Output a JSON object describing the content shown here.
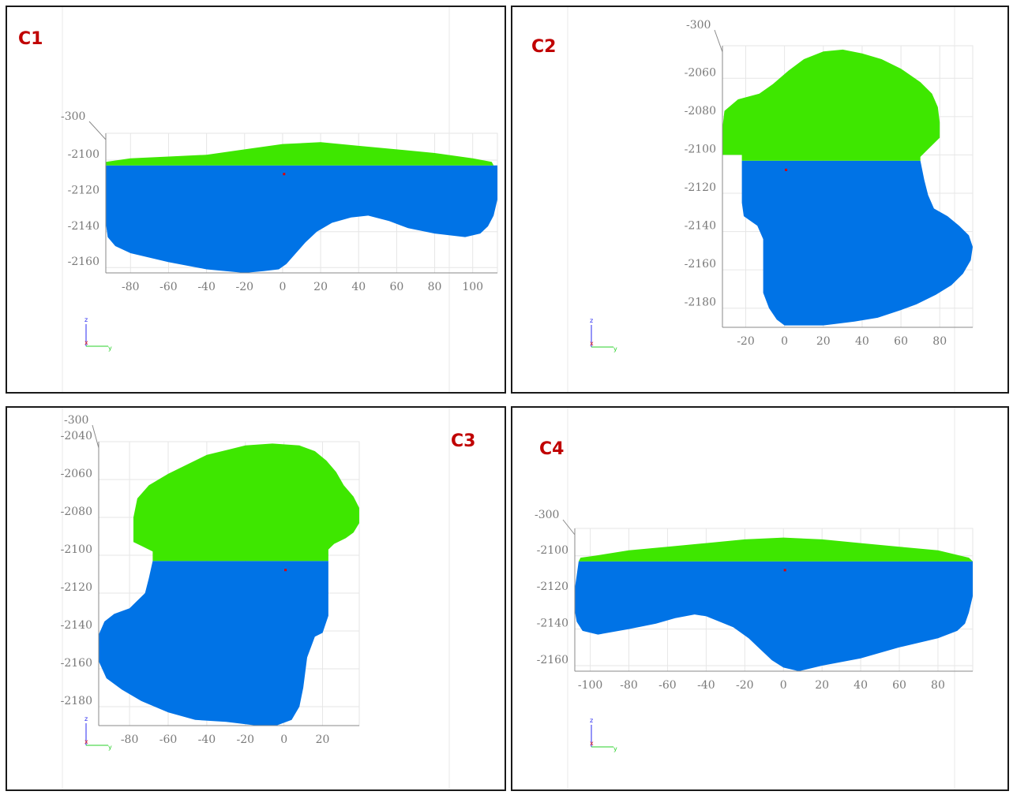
{
  "chart_data": [
    {
      "id": "C1",
      "type": "area",
      "label": "C1",
      "corner_label": "-300",
      "x_ticks": [
        -80,
        -60,
        -40,
        -20,
        0,
        20,
        40,
        60,
        80,
        100
      ],
      "y_ticks": [
        -2100,
        -2120,
        -2140,
        -2160
      ],
      "xlim": [
        -93,
        113
      ],
      "ylim": [
        -2163,
        -2085
      ],
      "cut_z": -2103,
      "center_point": {
        "x": 1,
        "z": -2108
      },
      "colors": {
        "upper": "#3ee700",
        "lower": "#0073e6",
        "center": "#e00000"
      },
      "upper_top": [
        [
          -93,
          -2101
        ],
        [
          -80,
          -2099
        ],
        [
          -60,
          -2098
        ],
        [
          -40,
          -2097
        ],
        [
          -20,
          -2094
        ],
        [
          0,
          -2091
        ],
        [
          20,
          -2090
        ],
        [
          40,
          -2092
        ],
        [
          60,
          -2094
        ],
        [
          80,
          -2096
        ],
        [
          100,
          -2099
        ],
        [
          110,
          -2101
        ],
        [
          111,
          -2103
        ]
      ],
      "lower_bottom": [
        [
          113,
          -2122
        ],
        [
          111,
          -2131
        ],
        [
          108,
          -2137
        ],
        [
          104,
          -2141
        ],
        [
          96,
          -2143
        ],
        [
          80,
          -2141
        ],
        [
          66,
          -2138
        ],
        [
          56,
          -2134
        ],
        [
          45,
          -2131
        ],
        [
          36,
          -2132
        ],
        [
          26,
          -2135
        ],
        [
          18,
          -2140
        ],
        [
          12,
          -2146
        ],
        [
          7,
          -2152
        ],
        [
          2,
          -2158
        ],
        [
          -2,
          -2161
        ],
        [
          -10,
          -2162
        ],
        [
          -20,
          -2163
        ],
        [
          -40,
          -2161
        ],
        [
          -60,
          -2157
        ],
        [
          -80,
          -2152
        ],
        [
          -88,
          -2148
        ],
        [
          -92,
          -2143
        ],
        [
          -93,
          -2135
        ]
      ]
    },
    {
      "id": "C2",
      "type": "area",
      "label": "C2",
      "corner_label": "-300",
      "x_ticks": [
        -20,
        0,
        20,
        40,
        60,
        80
      ],
      "y_ticks": [
        -2060,
        -2080,
        -2100,
        -2120,
        -2140,
        -2160,
        -2180
      ],
      "xlim": [
        -32,
        97
      ],
      "ylim": [
        -2190,
        -2043
      ],
      "cut_z": -2103,
      "center_point": {
        "x": 1,
        "z": -2108
      },
      "colors": {
        "upper": "#3ee700",
        "lower": "#0073e6",
        "center": "#e00000"
      },
      "upper_top": [
        [
          -32,
          -2100
        ],
        [
          -32,
          -2086
        ],
        [
          -31,
          -2077
        ],
        [
          -24,
          -2071
        ],
        [
          -13,
          -2068
        ],
        [
          -6,
          -2063
        ],
        [
          2,
          -2056
        ],
        [
          10,
          -2050
        ],
        [
          20,
          -2046
        ],
        [
          30,
          -2045
        ],
        [
          40,
          -2047
        ],
        [
          50,
          -2050
        ],
        [
          60,
          -2055
        ],
        [
          70,
          -2062
        ],
        [
          76,
          -2068
        ],
        [
          79,
          -2075
        ],
        [
          80,
          -2083
        ],
        [
          80,
          -2091
        ],
        [
          74,
          -2097
        ],
        [
          70,
          -2101
        ],
        [
          70,
          -2103
        ]
      ],
      "upper_bottom_left": -22,
      "lower_left": [
        [
          -22,
          -2103
        ],
        [
          -22,
          -2125
        ],
        [
          -21,
          -2132
        ],
        [
          -14,
          -2137
        ],
        [
          -11,
          -2144
        ],
        [
          -11,
          -2172
        ],
        [
          -8,
          -2180
        ],
        [
          -4,
          -2186
        ],
        [
          0,
          -2189
        ]
      ],
      "lower_right": [
        [
          70,
          -2103
        ],
        [
          72,
          -2113
        ],
        [
          74,
          -2121
        ],
        [
          77,
          -2128
        ],
        [
          84,
          -2132
        ],
        [
          90,
          -2137
        ],
        [
          95,
          -2142
        ],
        [
          97,
          -2148
        ],
        [
          96,
          -2155
        ],
        [
          92,
          -2162
        ],
        [
          86,
          -2168
        ],
        [
          78,
          -2173
        ],
        [
          68,
          -2178
        ],
        [
          60,
          -2181
        ],
        [
          48,
          -2185
        ],
        [
          36,
          -2187
        ],
        [
          20,
          -2189
        ],
        [
          0,
          -2189
        ]
      ]
    },
    {
      "id": "C3",
      "type": "area",
      "label": "C3",
      "corner_label": "-300",
      "x_ticks": [
        -80,
        -60,
        -40,
        -20,
        0,
        20
      ],
      "y_ticks": [
        -2040,
        -2060,
        -2080,
        -2100,
        -2120,
        -2140,
        -2160,
        -2180
      ],
      "xlim": [
        -96,
        39
      ],
      "ylim": [
        -2190,
        -2040
      ],
      "cut_z": -2103,
      "center_point": {
        "x": 1,
        "z": -2108
      },
      "colors": {
        "upper": "#3ee700",
        "lower": "#0073e6",
        "center": "#e00000"
      },
      "upper_top": [
        [
          -68,
          -2103
        ],
        [
          -68,
          -2098
        ],
        [
          -74,
          -2095
        ],
        [
          -78,
          -2093
        ],
        [
          -78,
          -2080
        ],
        [
          -76,
          -2070
        ],
        [
          -70,
          -2063
        ],
        [
          -60,
          -2057
        ],
        [
          -50,
          -2052
        ],
        [
          -40,
          -2047
        ],
        [
          -28,
          -2044
        ],
        [
          -20,
          -2042
        ],
        [
          -6,
          -2041
        ],
        [
          8,
          -2042
        ],
        [
          16,
          -2045
        ],
        [
          22,
          -2050
        ],
        [
          27,
          -2056
        ],
        [
          31,
          -2063
        ],
        [
          36,
          -2069
        ],
        [
          39,
          -2075
        ],
        [
          39,
          -2083
        ],
        [
          36,
          -2088
        ],
        [
          32,
          -2091
        ],
        [
          26,
          -2094
        ],
        [
          23,
          -2097
        ],
        [
          23,
          -2103
        ]
      ],
      "lower_left": [
        [
          -68,
          -2103
        ],
        [
          -70,
          -2112
        ],
        [
          -72,
          -2120
        ],
        [
          -80,
          -2128
        ],
        [
          -88,
          -2131
        ],
        [
          -93,
          -2135
        ],
        [
          -96,
          -2142
        ],
        [
          -96,
          -2156
        ],
        [
          -92,
          -2165
        ],
        [
          -84,
          -2171
        ],
        [
          -74,
          -2177
        ],
        [
          -60,
          -2183
        ],
        [
          -46,
          -2187
        ],
        [
          -30,
          -2188
        ],
        [
          -14,
          -2190
        ]
      ],
      "lower_right": [
        [
          23,
          -2103
        ],
        [
          23,
          -2132
        ],
        [
          20,
          -2141
        ],
        [
          16,
          -2143
        ],
        [
          12,
          -2154
        ],
        [
          10,
          -2170
        ],
        [
          8,
          -2180
        ],
        [
          4,
          -2187
        ],
        [
          -4,
          -2190
        ],
        [
          -14,
          -2190
        ]
      ]
    },
    {
      "id": "C4",
      "type": "area",
      "label": "C4",
      "corner_label": "-300",
      "x_ticks": [
        -100,
        -80,
        -60,
        -40,
        -20,
        0,
        20,
        40,
        60,
        80
      ],
      "y_ticks": [
        -2100,
        -2120,
        -2140,
        -2160
      ],
      "xlim": [
        -108,
        98
      ],
      "ylim": [
        -2163,
        -2085
      ],
      "cut_z": -2103,
      "center_point": {
        "x": 1,
        "z": -2108
      },
      "colors": {
        "upper": "#3ee700",
        "lower": "#0073e6",
        "center": "#e00000"
      },
      "upper_top": [
        [
          -106,
          -2103
        ],
        [
          -105,
          -2101
        ],
        [
          -98,
          -2100
        ],
        [
          -80,
          -2097
        ],
        [
          -60,
          -2095
        ],
        [
          -40,
          -2093
        ],
        [
          -20,
          -2091
        ],
        [
          0,
          -2090
        ],
        [
          20,
          -2091
        ],
        [
          40,
          -2093
        ],
        [
          60,
          -2095
        ],
        [
          80,
          -2097
        ],
        [
          96,
          -2101
        ],
        [
          98,
          -2103
        ]
      ],
      "lower_bottom": [
        [
          98,
          -2122
        ],
        [
          96,
          -2131
        ],
        [
          94,
          -2137
        ],
        [
          90,
          -2141
        ],
        [
          80,
          -2145
        ],
        [
          60,
          -2150
        ],
        [
          40,
          -2156
        ],
        [
          20,
          -2160
        ],
        [
          8,
          -2163
        ],
        [
          0,
          -2161
        ],
        [
          -6,
          -2157
        ],
        [
          -12,
          -2151
        ],
        [
          -18,
          -2145
        ],
        [
          -26,
          -2139
        ],
        [
          -40,
          -2133
        ],
        [
          -46,
          -2132
        ],
        [
          -56,
          -2134
        ],
        [
          -66,
          -2137
        ],
        [
          -80,
          -2140
        ],
        [
          -96,
          -2143
        ],
        [
          -104,
          -2141
        ],
        [
          -107,
          -2136
        ],
        [
          -108,
          -2130
        ],
        [
          -108,
          -2118
        ],
        [
          -106,
          -2103
        ]
      ]
    }
  ]
}
